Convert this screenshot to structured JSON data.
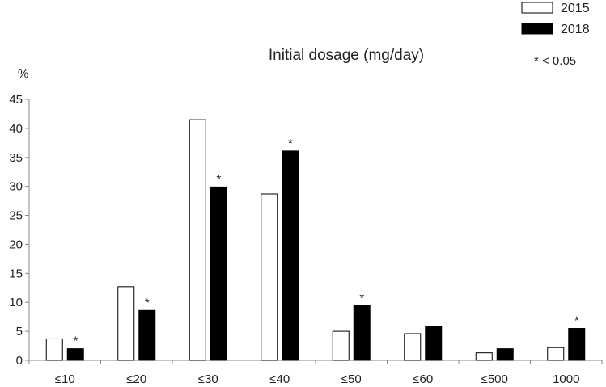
{
  "chart_data": {
    "type": "bar",
    "title": "Initial dosage (mg/day)",
    "ylabel": "%",
    "xlabel": "",
    "ylim": [
      0,
      45
    ],
    "yticks": [
      0,
      5,
      10,
      15,
      20,
      25,
      30,
      35,
      40,
      45
    ],
    "categories": [
      "≤10",
      "≤20",
      "≤30",
      "≤40",
      "≤50",
      "≤60",
      "≤500",
      "1000"
    ],
    "series": [
      {
        "name": "2015",
        "values": [
          3.7,
          12.7,
          41.5,
          28.7,
          5.0,
          4.6,
          1.3,
          2.2
        ],
        "color": "#ffffff"
      },
      {
        "name": "2018",
        "values": [
          2.0,
          8.6,
          29.9,
          36.1,
          9.4,
          5.8,
          2.0,
          5.5
        ],
        "color": "#000000"
      }
    ],
    "significance": {
      "symbol": "*",
      "categories": [
        "≤10",
        "≤20",
        "≤30",
        "≤40",
        "≤50",
        "1000"
      ],
      "series": "2018"
    },
    "legend_note": "* < 0.05",
    "legend_position": "top-right",
    "grid": false
  }
}
